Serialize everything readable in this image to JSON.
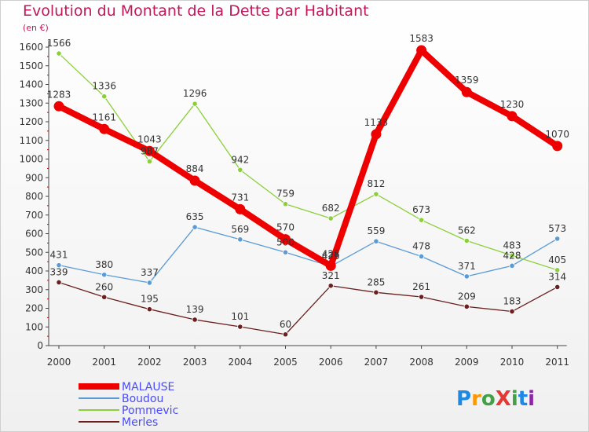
{
  "title": "Evolution du Montant de la Dette par Habitant",
  "subtitle": "(en €)",
  "brand": {
    "name": "ProXiti",
    "letters": [
      "P",
      "r",
      "o",
      "X",
      "i",
      "t",
      "i"
    ],
    "colors": [
      "#1e88e5",
      "#ff9800",
      "#43a047",
      "#e53935",
      "#43a047",
      "#1e88e5",
      "#8e24aa"
    ]
  },
  "chart_data": {
    "type": "line",
    "x": [
      "2000",
      "2001",
      "2002",
      "2003",
      "2004",
      "2005",
      "2006",
      "2007",
      "2008",
      "2009",
      "2010",
      "2011"
    ],
    "ylim": [
      0,
      1600
    ],
    "yticks": [
      0,
      100,
      200,
      300,
      400,
      500,
      600,
      700,
      800,
      900,
      1000,
      1100,
      1200,
      1300,
      1400,
      1500,
      1600
    ],
    "grid": false,
    "legend_position": "bottom-left",
    "series": [
      {
        "name": "MALAUSE",
        "color": "#ee0000",
        "values": [
          1283,
          1161,
          1043,
          884,
          731,
          570,
          428,
          1133,
          1583,
          1359,
          1230,
          1070
        ]
      },
      {
        "name": "Boudou",
        "color": "#5b9bd5",
        "values": [
          431,
          380,
          337,
          635,
          569,
          500,
          425,
          559,
          478,
          371,
          428,
          573
        ]
      },
      {
        "name": "Pommevic",
        "color": "#8bd03a",
        "values": [
          1566,
          1336,
          987,
          1296,
          942,
          759,
          682,
          812,
          673,
          562,
          483,
          405
        ]
      },
      {
        "name": "Merles",
        "color": "#6b1f1f",
        "values": [
          339,
          260,
          195,
          139,
          101,
          60,
          321,
          285,
          261,
          209,
          183,
          314
        ]
      }
    ]
  }
}
